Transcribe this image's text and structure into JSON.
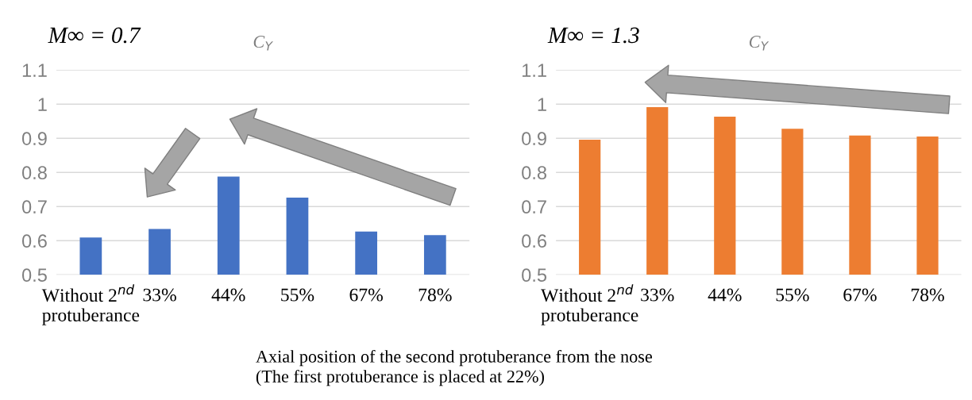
{
  "chart_data": [
    {
      "type": "bar",
      "title": "M∞ = 0.7",
      "subtitle": "C$_{Y}$",
      "categories": [
        "Without 2$^{nd}$\nprotuberance",
        "33%",
        "44%",
        "55%",
        "67%",
        "78%"
      ],
      "series": [
        {
          "color": "#4472c4",
          "values": [
            0.609,
            0.634,
            0.788,
            0.726,
            0.627,
            0.616
          ]
        }
      ],
      "ylim": [
        0.5,
        1.1
      ],
      "yticks": [
        {
          "value": 0.5,
          "label": "0.5"
        },
        {
          "value": 0.6,
          "label": "0.6"
        },
        {
          "value": 0.7,
          "label": "0.7"
        },
        {
          "value": 0.8,
          "label": "0.8"
        },
        {
          "value": 0.9,
          "label": "0.9"
        },
        {
          "value": 1,
          "label": "1"
        },
        {
          "value": 1.1,
          "label": "1.1"
        }
      ],
      "grid": "y",
      "annotations": [
        "Axial position of the second protuberance from the nose\n(The first protuberance is placed at 22%)"
      ]
    },
    {
      "type": "bar",
      "title": "M∞ = 1.3",
      "subtitle": "C$_{Y}$",
      "categories": [
        "Without 2$^{nd}$\nprotuberance",
        "33%",
        "44%",
        "55%",
        "67%",
        "78%"
      ],
      "series": [
        {
          "color": "#ed7d31",
          "values": [
            0.896,
            0.991,
            0.963,
            0.928,
            0.908,
            0.905
          ]
        }
      ],
      "ylim": [
        0.5,
        1.1
      ],
      "yticks": [
        {
          "value": 0.5,
          "label": "0.5"
        },
        {
          "value": 0.6,
          "label": "0.6"
        },
        {
          "value": 0.7,
          "label": "0.7"
        },
        {
          "value": 0.8,
          "label": "0.8"
        },
        {
          "value": 0.9,
          "label": "0.9"
        },
        {
          "value": 1,
          "label": "1"
        },
        {
          "value": 1.1,
          "label": "1.1"
        }
      ],
      "grid": "y"
    }
  ]
}
